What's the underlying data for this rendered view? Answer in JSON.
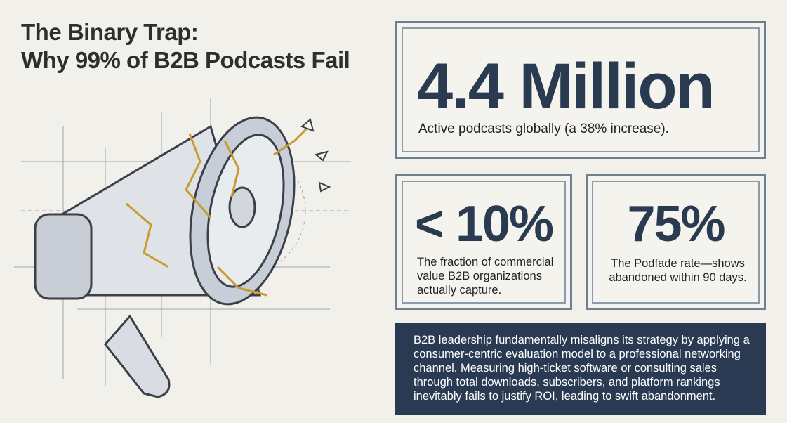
{
  "header": {
    "title_line_1": "The Binary Trap:",
    "title_line_2": "Why 99% of B2B Podcasts Fail"
  },
  "stats": [
    {
      "value": "4.4 Million",
      "caption": "Active podcasts globally (a 38% increase)."
    },
    {
      "value": "< 10%",
      "caption": "The fraction of commercial value B2B organizations actually capture."
    },
    {
      "value": "75%",
      "caption": "The Podfade rate—shows abandoned within 90 days."
    }
  ],
  "summary": "B2B leadership fundamentally misaligns its strategy by applying a consumer-centric evaluation model to a professional networking channel. Measuring high-ticket software or consulting sales through total downloads, subscribers, and platform rankings inevitably fails to justify ROI, leading to swift abandonment."
}
